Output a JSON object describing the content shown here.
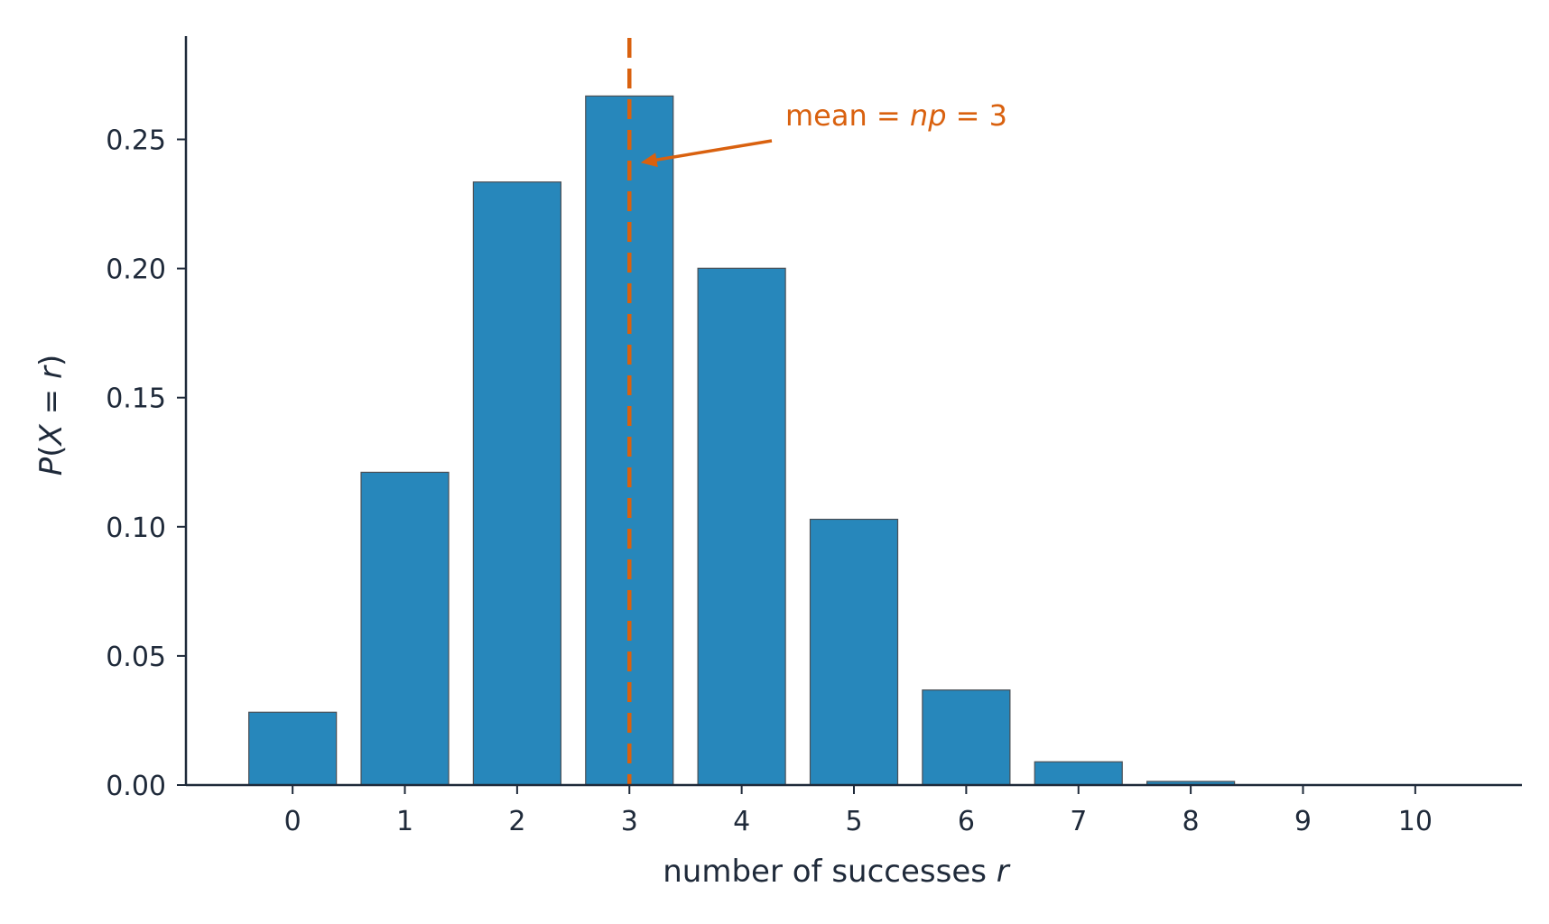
{
  "chart_data": {
    "type": "bar",
    "categories": [
      "0",
      "1",
      "2",
      "3",
      "4",
      "5",
      "6",
      "7",
      "8",
      "9",
      "10"
    ],
    "x": [
      0,
      1,
      2,
      3,
      4,
      5,
      6,
      7,
      8,
      9,
      10
    ],
    "values": [
      0.0282,
      0.1211,
      0.2335,
      0.2668,
      0.2001,
      0.1029,
      0.0368,
      0.009,
      0.0014,
      0.0001,
      0.0
    ],
    "xlabel_text": "number of successes ",
    "xlabel_var": "r",
    "ylabel": {
      "p": "P",
      "open": "(",
      "x": "X",
      "eq": " = ",
      "r": "r",
      "close": ")"
    },
    "xlim": [
      -0.95,
      10.95
    ],
    "ylim": [
      0,
      0.29
    ],
    "yticks": [
      "0.00",
      "0.05",
      "0.10",
      "0.15",
      "0.20",
      "0.25"
    ],
    "ytick_values": [
      0,
      0.05,
      0.1,
      0.15,
      0.2,
      0.25
    ],
    "grid": false,
    "bar_color": "#2787bb",
    "mean_line": {
      "x": 3,
      "color": "#d9610f",
      "style": "dashed"
    },
    "annotation": {
      "text_mean": "mean",
      "text_eq1": " = ",
      "text_np": "np",
      "text_eq2": " = 3",
      "arrow_target": {
        "x": 3.1,
        "y": 0.241
      },
      "color": "#d9610f"
    }
  }
}
